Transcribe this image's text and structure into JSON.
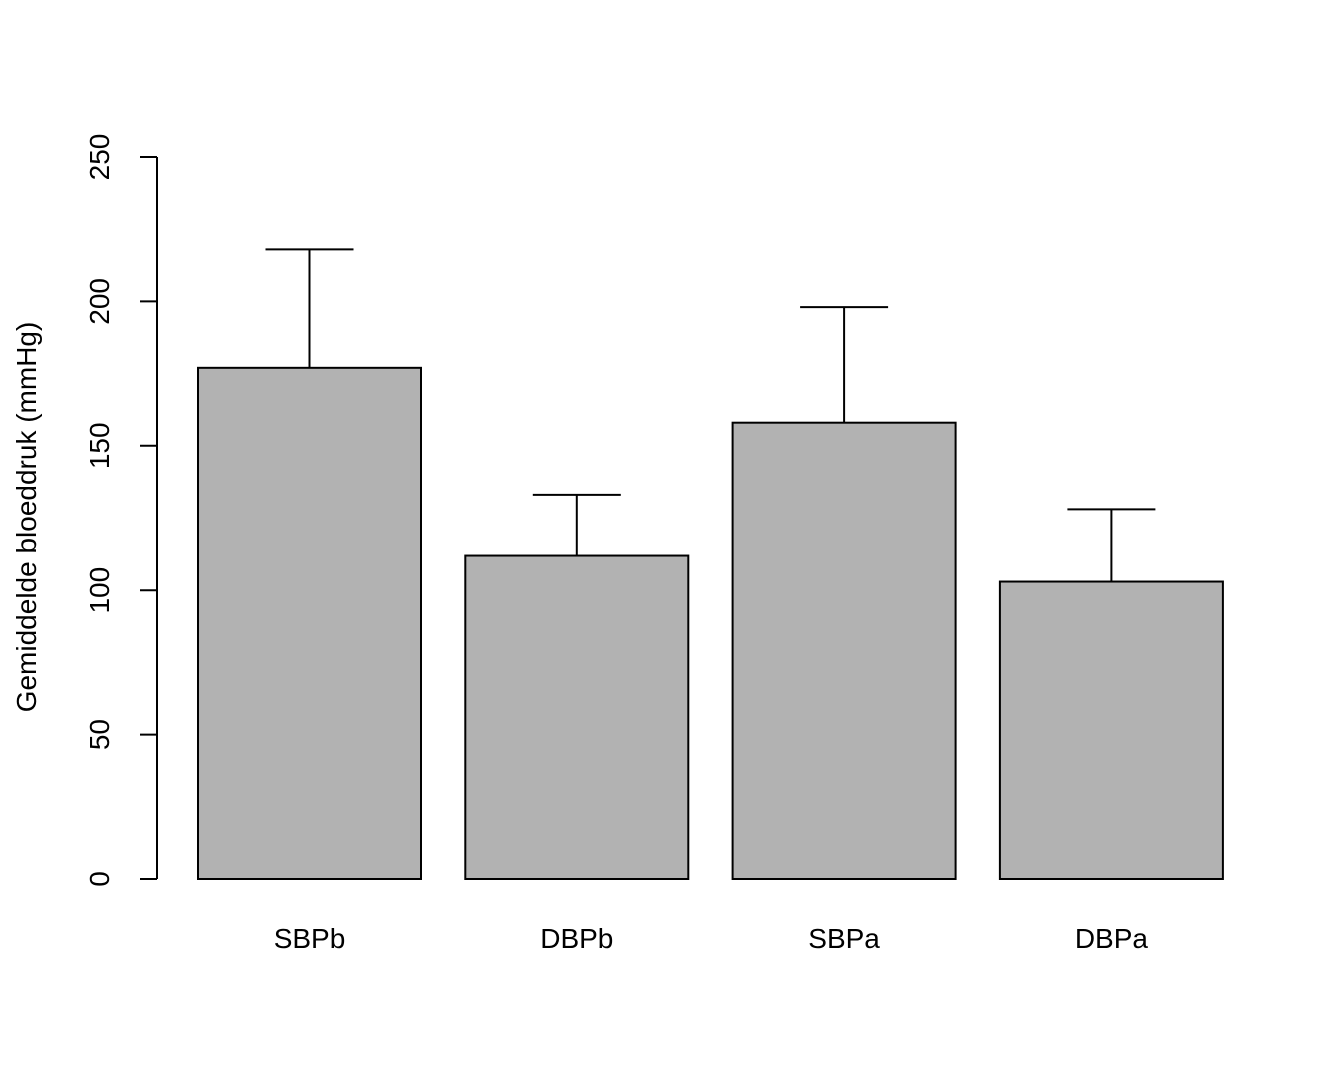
{
  "chart_data": {
    "type": "bar",
    "categories": [
      "SBPb",
      "DBPb",
      "SBPa",
      "DBPa"
    ],
    "values": [
      177,
      112,
      158,
      103
    ],
    "error_upper": [
      218,
      133,
      198,
      128
    ],
    "ylabel": "Gemiddelde bloeddruk (mmHg)",
    "xlabel": "",
    "title": "",
    "ylim": [
      0,
      250
    ],
    "yticks": [
      0,
      50,
      100,
      150,
      200,
      250
    ],
    "grid": false,
    "legend": "none",
    "bar_color": "#b2b2b2",
    "line_color": "#000000"
  }
}
